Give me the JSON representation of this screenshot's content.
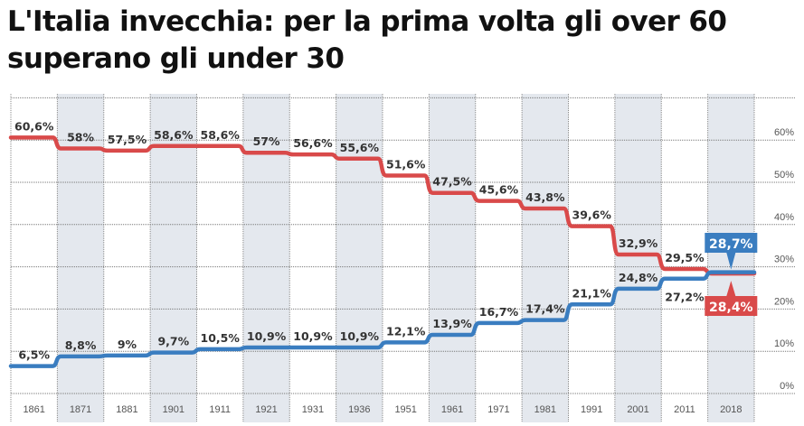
{
  "title": "L'Italia invecchia: per la prima volta gli over 60 superano gli under 30",
  "chart_data": {
    "type": "line",
    "title": "L'Italia invecchia: per la prima volta gli over 60 superano gli under 30",
    "categories": [
      "1861",
      "1871",
      "1881",
      "1901",
      "1911",
      "1921",
      "1931",
      "1936",
      "1951",
      "1961",
      "1971",
      "1981",
      "1991",
      "2001",
      "2011",
      "2018"
    ],
    "series": [
      {
        "name": "under 30",
        "color": "#d94a4a",
        "values": [
          60.6,
          58,
          57.5,
          58.6,
          58.6,
          57,
          56.6,
          55.6,
          51.6,
          47.5,
          45.6,
          43.8,
          39.6,
          32.9,
          29.5,
          28.4
        ],
        "labels": [
          "60,6%",
          "58%",
          "57,5%",
          "58,6%",
          "58,6%",
          "57%",
          "56,6%",
          "55,6%",
          "51,6%",
          "47,5%",
          "45,6%",
          "43,8%",
          "39,6%",
          "32,9%",
          "29,5%",
          "28,4%"
        ]
      },
      {
        "name": "over 60",
        "color": "#3a7dc0",
        "values": [
          6.5,
          8.8,
          9,
          9.7,
          10.5,
          10.9,
          10.9,
          10.9,
          12.1,
          13.9,
          16.7,
          17.4,
          21.1,
          24.8,
          27.2,
          28.7
        ],
        "labels": [
          "6,5%",
          "8,8%",
          "9%",
          "9,7%",
          "10,5%",
          "10,9%",
          "10,9%",
          "10,9%",
          "12,1%",
          "13,9%",
          "16,7%",
          "17,4%",
          "21,1%",
          "24,8%",
          "27,2%",
          "28,7%"
        ]
      }
    ],
    "yticks": [
      "0%",
      "10%",
      "20%",
      "30%",
      "40%",
      "50%",
      "60%"
    ],
    "ylim": [
      0,
      70
    ],
    "ylabel_position": "right",
    "grid": true,
    "shaded_columns": "alternating"
  }
}
